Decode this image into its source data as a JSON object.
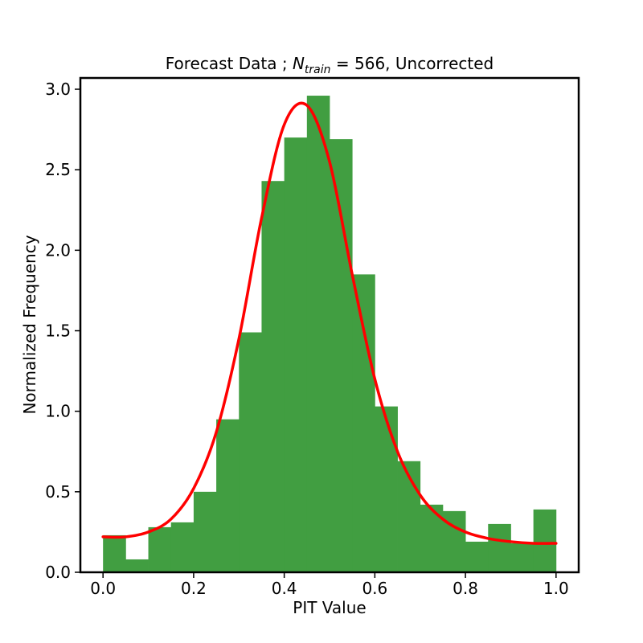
{
  "chart_data": {
    "type": "bar",
    "title_prefix": "Forecast Data ; ",
    "title_symbol": "N",
    "title_subscript": "train",
    "title_suffix": " =  566, Uncorrected",
    "xlabel": "PIT Value",
    "ylabel": "Normalized Frequency",
    "xlim": [
      -0.05,
      1.05
    ],
    "ylim": [
      0.0,
      3.07
    ],
    "xticks": [
      "0.0",
      "0.2",
      "0.4",
      "0.6",
      "0.8",
      "1.0"
    ],
    "yticks": [
      "0.0",
      "0.5",
      "1.0",
      "1.5",
      "2.0",
      "2.5",
      "3.0"
    ],
    "bin_edges": [
      0.0,
      0.05,
      0.1,
      0.15,
      0.2,
      0.25,
      0.3,
      0.35,
      0.4,
      0.45,
      0.5,
      0.55,
      0.6,
      0.65,
      0.7,
      0.75,
      0.8,
      0.85,
      0.9,
      0.95,
      1.0
    ],
    "series": [
      {
        "type": "histogram",
        "color": "#419e41",
        "values": [
          0.23,
          0.08,
          0.28,
          0.31,
          0.5,
          0.95,
          1.49,
          2.43,
          2.7,
          2.96,
          2.69,
          1.85,
          1.03,
          0.69,
          0.42,
          0.38,
          0.19,
          0.3,
          0.18,
          0.39
        ]
      },
      {
        "type": "line",
        "color": "#ff0000",
        "x": [
          0.0,
          0.05,
          0.1,
          0.15,
          0.2,
          0.25,
          0.3,
          0.35,
          0.4,
          0.45,
          0.5,
          0.55,
          0.6,
          0.65,
          0.7,
          0.75,
          0.8,
          0.85,
          0.9,
          0.95,
          1.0
        ],
        "values": [
          0.22,
          0.22,
          0.25,
          0.33,
          0.52,
          0.87,
          1.45,
          2.2,
          2.78,
          2.9,
          2.55,
          1.85,
          1.2,
          0.75,
          0.48,
          0.33,
          0.25,
          0.21,
          0.19,
          0.18,
          0.18
        ]
      }
    ]
  }
}
